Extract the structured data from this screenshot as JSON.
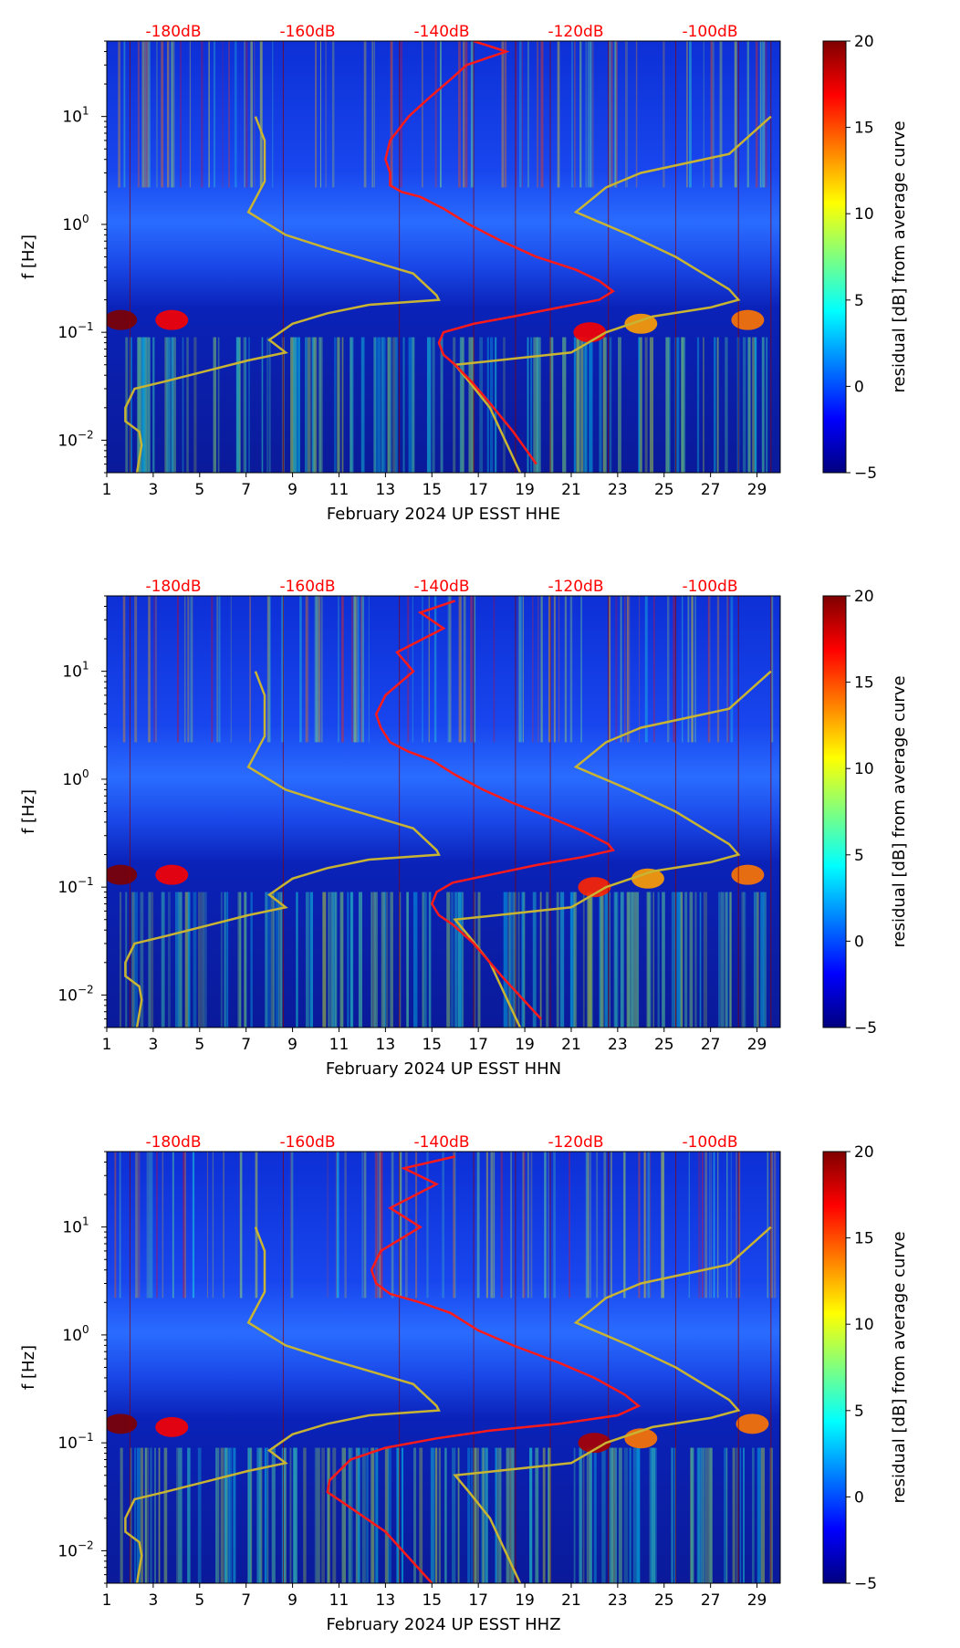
{
  "colors": {
    "top_scale_text": "#ff0000",
    "red_curve": "#ff1a1a",
    "yellow_curve": "#c8b432",
    "day_line": "#8b0000",
    "colormap": [
      "#00007f",
      "#0000ff",
      "#007fff",
      "#00ffff",
      "#7fff7f",
      "#ffff00",
      "#ff7f00",
      "#ff0000",
      "#7f0000"
    ]
  },
  "chart_data": [
    {
      "type": "heatmap",
      "title": "",
      "xlabel": "February 2024 UP ESST  HHE",
      "ylabel": "f [Hz]",
      "xlim": [
        1,
        30
      ],
      "ylim": [
        0.005,
        50
      ],
      "yscale": "log",
      "xticks": [
        1,
        3,
        5,
        7,
        9,
        11,
        13,
        15,
        17,
        19,
        21,
        23,
        25,
        27,
        29
      ],
      "yticks": [
        {
          "value": 0.01,
          "base": "10",
          "exp": "−2"
        },
        {
          "value": 0.1,
          "base": "10",
          "exp": "−1"
        },
        {
          "value": 1,
          "base": "10",
          "exp": "0"
        },
        {
          "value": 10,
          "base": "10",
          "exp": "1"
        }
      ],
      "top_scale": [
        "-180dB",
        "-160dB",
        "-140dB",
        "-120dB",
        "-100dB"
      ],
      "colorbar": {
        "label": "residual [dB] from average curve",
        "range": [
          -5,
          20
        ],
        "ticks": [
          -5,
          0,
          5,
          10,
          15,
          20
        ],
        "tick_labels": [
          "−5",
          "0",
          "5",
          "10",
          "15",
          "20"
        ]
      },
      "day_lines": [
        2,
        8.6,
        13.6,
        16.8,
        18.6,
        20.1,
        22.6,
        25.5,
        28.2,
        29.6
      ],
      "red_curve": [
        [
          16.8,
          50
        ],
        [
          18.2,
          40
        ],
        [
          16.5,
          30
        ],
        [
          15.8,
          22
        ],
        [
          14.9,
          15
        ],
        [
          14.0,
          10
        ],
        [
          13.2,
          6
        ],
        [
          13.0,
          4
        ],
        [
          13.2,
          3
        ],
        [
          13.2,
          2.3
        ],
        [
          13.7,
          2.0
        ],
        [
          14.5,
          1.8
        ],
        [
          15.5,
          1.4
        ],
        [
          16.6,
          1.0
        ],
        [
          18.0,
          0.7
        ],
        [
          19.5,
          0.5
        ],
        [
          21.2,
          0.38
        ],
        [
          22.2,
          0.3
        ],
        [
          22.8,
          0.24
        ],
        [
          22.2,
          0.2
        ],
        [
          20.5,
          0.17
        ],
        [
          18.5,
          0.14
        ],
        [
          16.8,
          0.12
        ],
        [
          15.5,
          0.1
        ],
        [
          15.3,
          0.08
        ],
        [
          15.5,
          0.062
        ],
        [
          16.0,
          0.05
        ],
        [
          16.7,
          0.035
        ],
        [
          17.5,
          0.022
        ],
        [
          18.5,
          0.012
        ],
        [
          19.5,
          0.006
        ]
      ],
      "yellow_curve": [
        [
          7.4,
          10
        ],
        [
          7.8,
          6
        ],
        [
          7.8,
          2.5
        ],
        [
          7.1,
          1.3
        ],
        [
          8.7,
          0.8
        ],
        [
          10.5,
          0.6
        ],
        [
          12.5,
          0.45
        ],
        [
          14.2,
          0.35
        ],
        [
          15.2,
          0.22
        ],
        [
          15.3,
          0.2
        ],
        [
          12.3,
          0.18
        ],
        [
          10.5,
          0.15
        ],
        [
          9.0,
          0.12
        ],
        [
          8.0,
          0.085
        ],
        [
          8.7,
          0.065
        ],
        [
          7.1,
          0.055
        ],
        [
          5.5,
          0.045
        ],
        [
          3.5,
          0.035
        ],
        [
          2.2,
          0.03
        ],
        [
          1.8,
          0.02
        ],
        [
          1.8,
          0.015
        ],
        [
          2.4,
          0.012
        ],
        [
          2.5,
          0.009
        ],
        [
          2.3,
          0.005
        ]
      ],
      "yellow_curve_2": [
        [
          29.6,
          10
        ],
        [
          27.8,
          4.5
        ],
        [
          24.0,
          3.0
        ],
        [
          22.5,
          2.2
        ],
        [
          21.2,
          1.3
        ],
        [
          23.5,
          0.8
        ],
        [
          25.5,
          0.5
        ],
        [
          27.8,
          0.25
        ],
        [
          28.2,
          0.2
        ],
        [
          27.0,
          0.17
        ],
        [
          24.5,
          0.14
        ],
        [
          22.5,
          0.1
        ],
        [
          21.0,
          0.065
        ],
        [
          16.0,
          0.05
        ],
        [
          16.6,
          0.035
        ],
        [
          17.5,
          0.02
        ],
        [
          18.8,
          0.005
        ]
      ],
      "hot_spots": [
        {
          "x": 1.6,
          "y": 0.13,
          "value": 20
        },
        {
          "x": 3.8,
          "y": 0.13,
          "value": 17
        },
        {
          "x": 21.8,
          "y": 0.1,
          "value": 17
        },
        {
          "x": 28.6,
          "y": 0.13,
          "value": 14
        },
        {
          "x": 24.0,
          "y": 0.12,
          "value": 13
        }
      ]
    },
    {
      "type": "heatmap",
      "title": "",
      "xlabel": "February 2024 UP ESST  HHN",
      "ylabel": "f [Hz]",
      "xlim": [
        1,
        30
      ],
      "ylim": [
        0.005,
        50
      ],
      "yscale": "log",
      "xticks": [
        1,
        3,
        5,
        7,
        9,
        11,
        13,
        15,
        17,
        19,
        21,
        23,
        25,
        27,
        29
      ],
      "yticks": [
        {
          "value": 0.01,
          "base": "10",
          "exp": "−2"
        },
        {
          "value": 0.1,
          "base": "10",
          "exp": "−1"
        },
        {
          "value": 1,
          "base": "10",
          "exp": "0"
        },
        {
          "value": 10,
          "base": "10",
          "exp": "1"
        }
      ],
      "top_scale": [
        "-180dB",
        "-160dB",
        "-140dB",
        "-120dB",
        "-100dB"
      ],
      "colorbar": {
        "label": "residual [dB] from average curve",
        "range": [
          -5,
          20
        ],
        "ticks": [
          -5,
          0,
          5,
          10,
          15,
          20
        ],
        "tick_labels": [
          "−5",
          "0",
          "5",
          "10",
          "15",
          "20"
        ]
      },
      "day_lines": [
        2,
        8.6,
        13.6,
        16.8,
        18.6,
        20.1,
        22.6,
        25.5,
        28.2,
        29.6
      ],
      "red_curve": [
        [
          16.0,
          45
        ],
        [
          14.5,
          35
        ],
        [
          15.5,
          25
        ],
        [
          13.5,
          15
        ],
        [
          14.2,
          10
        ],
        [
          13.0,
          6
        ],
        [
          12.6,
          4
        ],
        [
          12.8,
          3
        ],
        [
          13.2,
          2.2
        ],
        [
          14.0,
          1.8
        ],
        [
          15.0,
          1.5
        ],
        [
          16.0,
          1.1
        ],
        [
          17.2,
          0.8
        ],
        [
          18.5,
          0.6
        ],
        [
          20.0,
          0.45
        ],
        [
          21.5,
          0.33
        ],
        [
          22.6,
          0.25
        ],
        [
          22.8,
          0.22
        ],
        [
          21.5,
          0.19
        ],
        [
          19.5,
          0.16
        ],
        [
          17.5,
          0.13
        ],
        [
          15.9,
          0.11
        ],
        [
          15.2,
          0.09
        ],
        [
          15.0,
          0.07
        ],
        [
          15.3,
          0.055
        ],
        [
          15.9,
          0.045
        ],
        [
          16.8,
          0.03
        ],
        [
          18.0,
          0.015
        ],
        [
          19.7,
          0.006
        ]
      ],
      "yellow_curve": [
        [
          7.4,
          10
        ],
        [
          7.8,
          6
        ],
        [
          7.8,
          2.5
        ],
        [
          7.1,
          1.3
        ],
        [
          8.7,
          0.8
        ],
        [
          10.5,
          0.6
        ],
        [
          12.5,
          0.45
        ],
        [
          14.2,
          0.35
        ],
        [
          15.2,
          0.22
        ],
        [
          15.3,
          0.2
        ],
        [
          12.3,
          0.18
        ],
        [
          10.5,
          0.15
        ],
        [
          9.0,
          0.12
        ],
        [
          8.0,
          0.085
        ],
        [
          8.7,
          0.065
        ],
        [
          7.1,
          0.055
        ],
        [
          5.5,
          0.045
        ],
        [
          3.5,
          0.035
        ],
        [
          2.2,
          0.03
        ],
        [
          1.8,
          0.02
        ],
        [
          1.8,
          0.015
        ],
        [
          2.4,
          0.012
        ],
        [
          2.5,
          0.009
        ],
        [
          2.3,
          0.005
        ]
      ],
      "yellow_curve_2": [
        [
          29.6,
          10
        ],
        [
          27.8,
          4.5
        ],
        [
          24.0,
          3.0
        ],
        [
          22.5,
          2.2
        ],
        [
          21.2,
          1.3
        ],
        [
          23.5,
          0.8
        ],
        [
          25.5,
          0.5
        ],
        [
          27.8,
          0.25
        ],
        [
          28.2,
          0.2
        ],
        [
          27.0,
          0.17
        ],
        [
          24.5,
          0.14
        ],
        [
          22.5,
          0.1
        ],
        [
          21.0,
          0.065
        ],
        [
          16.0,
          0.05
        ],
        [
          16.6,
          0.035
        ],
        [
          17.5,
          0.02
        ],
        [
          18.8,
          0.005
        ]
      ],
      "hot_spots": [
        {
          "x": 1.6,
          "y": 0.13,
          "value": 20
        },
        {
          "x": 3.8,
          "y": 0.13,
          "value": 17
        },
        {
          "x": 22.0,
          "y": 0.1,
          "value": 16
        },
        {
          "x": 28.6,
          "y": 0.13,
          "value": 14
        },
        {
          "x": 24.3,
          "y": 0.12,
          "value": 13
        }
      ]
    },
    {
      "type": "heatmap",
      "title": "",
      "xlabel": "February 2024 UP ESST  HHZ",
      "ylabel": "f [Hz]",
      "xlim": [
        1,
        30
      ],
      "ylim": [
        0.005,
        50
      ],
      "yscale": "log",
      "xticks": [
        1,
        3,
        5,
        7,
        9,
        11,
        13,
        15,
        17,
        19,
        21,
        23,
        25,
        27,
        29
      ],
      "yticks": [
        {
          "value": 0.01,
          "base": "10",
          "exp": "−2"
        },
        {
          "value": 0.1,
          "base": "10",
          "exp": "−1"
        },
        {
          "value": 1,
          "base": "10",
          "exp": "0"
        },
        {
          "value": 10,
          "base": "10",
          "exp": "1"
        }
      ],
      "top_scale": [
        "-180dB",
        "-160dB",
        "-140dB",
        "-120dB",
        "-100dB"
      ],
      "colorbar": {
        "label": "residual [dB] from average curve",
        "range": [
          -5,
          20
        ],
        "ticks": [
          -5,
          0,
          5,
          10,
          15,
          20
        ],
        "tick_labels": [
          "−5",
          "0",
          "5",
          "10",
          "15",
          "20"
        ]
      },
      "day_lines": [
        2,
        8.6,
        13.6,
        16.8,
        18.6,
        20.1,
        22.6,
        25.5,
        28.2,
        29.6
      ],
      "red_curve": [
        [
          16.0,
          45
        ],
        [
          13.8,
          35
        ],
        [
          15.2,
          25
        ],
        [
          13.2,
          15
        ],
        [
          14.5,
          10
        ],
        [
          12.8,
          6
        ],
        [
          12.4,
          4
        ],
        [
          12.6,
          3
        ],
        [
          13.2,
          2.4
        ],
        [
          14.5,
          2.0
        ],
        [
          15.8,
          1.6
        ],
        [
          17.0,
          1.1
        ],
        [
          18.5,
          0.8
        ],
        [
          20.5,
          0.55
        ],
        [
          22.0,
          0.4
        ],
        [
          23.3,
          0.28
        ],
        [
          23.9,
          0.22
        ],
        [
          23.0,
          0.18
        ],
        [
          20.5,
          0.15
        ],
        [
          17.5,
          0.13
        ],
        [
          15.2,
          0.11
        ],
        [
          13.0,
          0.09
        ],
        [
          11.5,
          0.07
        ],
        [
          10.6,
          0.045
        ],
        [
          10.5,
          0.035
        ],
        [
          11.5,
          0.025
        ],
        [
          13.0,
          0.015
        ],
        [
          15.0,
          0.005
        ]
      ],
      "yellow_curve": [
        [
          7.4,
          10
        ],
        [
          7.8,
          6
        ],
        [
          7.8,
          2.5
        ],
        [
          7.1,
          1.3
        ],
        [
          8.7,
          0.8
        ],
        [
          10.5,
          0.6
        ],
        [
          12.5,
          0.45
        ],
        [
          14.2,
          0.35
        ],
        [
          15.2,
          0.22
        ],
        [
          15.3,
          0.2
        ],
        [
          12.3,
          0.18
        ],
        [
          10.5,
          0.15
        ],
        [
          9.0,
          0.12
        ],
        [
          8.0,
          0.085
        ],
        [
          8.7,
          0.065
        ],
        [
          7.1,
          0.055
        ],
        [
          5.5,
          0.045
        ],
        [
          3.5,
          0.035
        ],
        [
          2.2,
          0.03
        ],
        [
          1.8,
          0.02
        ],
        [
          1.8,
          0.015
        ],
        [
          2.4,
          0.012
        ],
        [
          2.5,
          0.009
        ],
        [
          2.3,
          0.005
        ]
      ],
      "yellow_curve_2": [
        [
          29.6,
          10
        ],
        [
          27.8,
          4.5
        ],
        [
          24.0,
          3.0
        ],
        [
          22.5,
          2.2
        ],
        [
          21.2,
          1.3
        ],
        [
          23.5,
          0.8
        ],
        [
          25.5,
          0.5
        ],
        [
          27.8,
          0.25
        ],
        [
          28.2,
          0.2
        ],
        [
          27.0,
          0.17
        ],
        [
          24.5,
          0.14
        ],
        [
          22.5,
          0.1
        ],
        [
          21.0,
          0.065
        ],
        [
          16.0,
          0.05
        ],
        [
          16.6,
          0.035
        ],
        [
          17.5,
          0.02
        ],
        [
          18.8,
          0.005
        ]
      ],
      "hot_spots": [
        {
          "x": 1.6,
          "y": 0.15,
          "value": 20
        },
        {
          "x": 3.8,
          "y": 0.14,
          "value": 17
        },
        {
          "x": 22.0,
          "y": 0.1,
          "value": 19
        },
        {
          "x": 24.0,
          "y": 0.11,
          "value": 14
        },
        {
          "x": 28.8,
          "y": 0.15,
          "value": 14
        }
      ]
    }
  ]
}
